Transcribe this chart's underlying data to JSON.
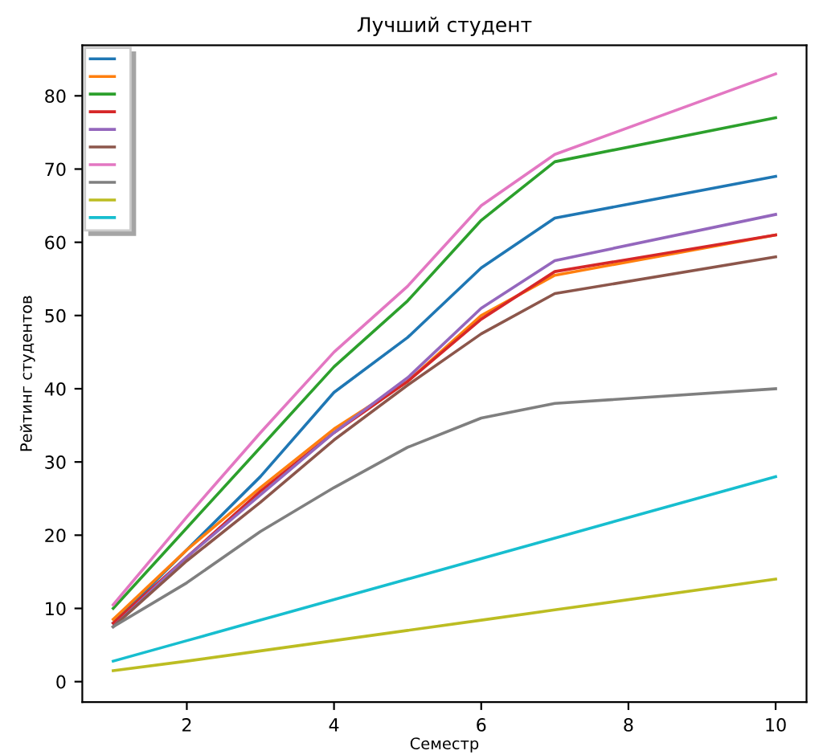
{
  "chart_data": {
    "type": "line",
    "title": "Лучший студент",
    "xlabel": "Семестр",
    "ylabel": "Рейтинг студентов",
    "x": [
      1,
      2,
      3,
      4,
      5,
      6,
      7,
      10
    ],
    "series": [
      {
        "color": "#1f77b4",
        "values": [
          8,
          18,
          28,
          39.5,
          47,
          56.5,
          63.3,
          69
        ]
      },
      {
        "color": "#ff7f0e",
        "values": [
          8.5,
          18,
          26.5,
          34.5,
          41,
          50,
          55.5,
          61
        ]
      },
      {
        "color": "#2ca02c",
        "values": [
          10,
          21,
          32,
          43,
          52,
          63,
          71,
          77
        ]
      },
      {
        "color": "#d62728",
        "values": [
          8,
          17,
          26,
          34,
          41,
          49.5,
          56,
          61
        ]
      },
      {
        "color": "#9467bd",
        "values": [
          7.5,
          17,
          25.5,
          34,
          41.5,
          51,
          57.5,
          63.8
        ]
      },
      {
        "color": "#8c564b",
        "values": [
          7.5,
          16.5,
          24.5,
          33,
          40.5,
          47.5,
          53,
          58
        ]
      },
      {
        "color": "#e377c2",
        "values": [
          10.5,
          22.5,
          34,
          45,
          54,
          65,
          72,
          83
        ]
      },
      {
        "color": "#7f7f7f",
        "values": [
          7.5,
          13.5,
          20.5,
          26.5,
          32,
          36,
          38,
          40
        ]
      },
      {
        "color": "#bcbd22",
        "values": [
          1.5,
          2.8,
          4.2,
          5.6,
          7,
          8.4,
          9.8,
          14
        ]
      },
      {
        "color": "#17becf",
        "values": [
          2.8,
          5.6,
          8.4,
          11.2,
          14,
          16.8,
          19.6,
          28
        ]
      }
    ],
    "xlim": [
      0.58,
      10.42
    ],
    "ylim": [
      -2.8,
      86.9
    ],
    "xticks": [
      2,
      4,
      6,
      8,
      10
    ],
    "yticks": [
      0,
      10,
      20,
      30,
      40,
      50,
      60,
      70,
      80
    ],
    "grid": false,
    "marker": "none",
    "line_style": "solid"
  }
}
